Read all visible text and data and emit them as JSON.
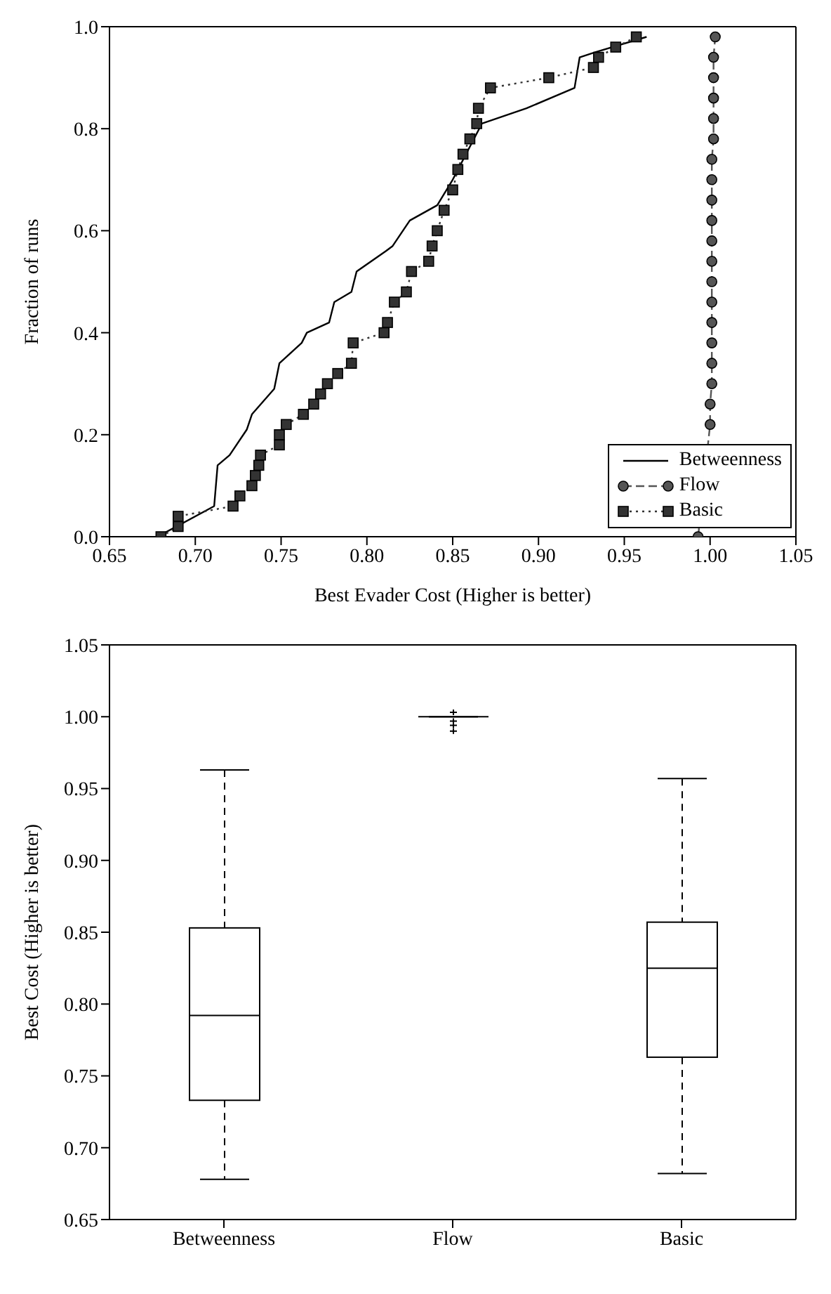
{
  "chart_data": [
    {
      "type": "line",
      "xlabel": "Best Evader Cost (Higher is better)",
      "ylabel": "Fraction of runs",
      "xlim": [
        0.65,
        1.05
      ],
      "ylim": [
        0,
        1
      ],
      "xticks": [
        {
          "value": 0.65,
          "label": "0.65"
        },
        {
          "value": 0.7,
          "label": "0.70"
        },
        {
          "value": 0.75,
          "label": "0.75"
        },
        {
          "value": 0.8,
          "label": "0.80"
        },
        {
          "value": 0.85,
          "label": "0.85"
        },
        {
          "value": 0.9,
          "label": "0.90"
        },
        {
          "value": 0.95,
          "label": "0.95"
        },
        {
          "value": 1,
          "label": "1.00"
        },
        {
          "value": 1.05,
          "label": "1.05"
        }
      ],
      "yticks": [
        {
          "value": 0,
          "label": "0.0"
        },
        {
          "value": 0.2,
          "label": "0.2"
        },
        {
          "value": 0.4,
          "label": "0.4"
        },
        {
          "value": 0.6,
          "label": "0.6"
        },
        {
          "value": 0.8,
          "label": "0.8"
        },
        {
          "value": 1,
          "label": "1.0"
        }
      ],
      "legend": "bottom right",
      "series": [
        {
          "name": "Betweenness",
          "color": "#000000",
          "marker": "none",
          "line_style": "solid",
          "x": [
            0.678,
            0.711,
            0.713,
            0.72,
            0.73,
            0.733,
            0.746,
            0.749,
            0.762,
            0.765,
            0.778,
            0.781,
            0.791,
            0.794,
            0.811,
            0.815,
            0.825,
            0.841,
            0.85,
            0.867,
            0.893,
            0.921,
            0.924,
            0.933,
            0.963
          ],
          "values": [
            0,
            0.06,
            0.14,
            0.16,
            0.21,
            0.24,
            0.29,
            0.34,
            0.38,
            0.4,
            0.42,
            0.46,
            0.48,
            0.52,
            0.56,
            0.57,
            0.62,
            0.65,
            0.7,
            0.81,
            0.84,
            0.88,
            0.94,
            0.95,
            0.98
          ]
        },
        {
          "name": "Flow",
          "color": "#555555",
          "marker": "circle",
          "line_style": "dashed",
          "x": [
            0.993,
            1,
            1,
            1.001,
            1.001,
            1.001,
            1.001,
            1.001,
            1.001,
            1.001,
            1.001,
            1.001,
            1.001,
            1.001,
            1.001,
            1.002,
            1.002,
            1.002,
            1.002,
            1.002,
            1.003
          ],
          "values": [
            0,
            0.22,
            0.26,
            0.3,
            0.34,
            0.38,
            0.42,
            0.46,
            0.5,
            0.54,
            0.58,
            0.62,
            0.66,
            0.7,
            0.74,
            0.78,
            0.82,
            0.86,
            0.9,
            0.94,
            0.98
          ]
        },
        {
          "name": "Basic",
          "color": "#333333",
          "marker": "square",
          "line_style": "dotted",
          "x": [
            0.68,
            0.69,
            0.69,
            0.722,
            0.726,
            0.733,
            0.735,
            0.737,
            0.738,
            0.749,
            0.749,
            0.753,
            0.763,
            0.769,
            0.773,
            0.777,
            0.783,
            0.791,
            0.792,
            0.81,
            0.812,
            0.816,
            0.823,
            0.826,
            0.836,
            0.838,
            0.841,
            0.845,
            0.85,
            0.853,
            0.856,
            0.86,
            0.864,
            0.865,
            0.872,
            0.906,
            0.932,
            0.935,
            0.945,
            0.957
          ],
          "values": [
            0,
            0.02,
            0.04,
            0.06,
            0.08,
            0.1,
            0.12,
            0.14,
            0.16,
            0.18,
            0.2,
            0.22,
            0.24,
            0.26,
            0.28,
            0.3,
            0.32,
            0.34,
            0.38,
            0.4,
            0.42,
            0.46,
            0.48,
            0.52,
            0.54,
            0.57,
            0.6,
            0.64,
            0.68,
            0.72,
            0.75,
            0.78,
            0.81,
            0.84,
            0.88,
            0.9,
            0.92,
            0.94,
            0.96,
            0.98
          ]
        }
      ]
    },
    {
      "type": "box",
      "ylabel": "Best Cost (Higher is better)",
      "categories": [
        "Betweenness",
        "Flow",
        "Basic"
      ],
      "ylim": [
        0.65,
        1.05
      ],
      "yticks": [
        {
          "value": 0.65,
          "label": "0.65"
        },
        {
          "value": 0.7,
          "label": "0.70"
        },
        {
          "value": 0.75,
          "label": "0.75"
        },
        {
          "value": 0.8,
          "label": "0.80"
        },
        {
          "value": 0.85,
          "label": "0.85"
        },
        {
          "value": 0.9,
          "label": "0.90"
        },
        {
          "value": 0.95,
          "label": "0.95"
        },
        {
          "value": 1,
          "label": "1.00"
        },
        {
          "value": 1.05,
          "label": "1.05"
        }
      ],
      "boxes": [
        {
          "low": 0.678,
          "q1": 0.733,
          "median": 0.792,
          "q3": 0.853,
          "high": 0.963
        },
        {
          "low": 1,
          "q1": 1,
          "median": 1,
          "q3": 1,
          "high": 1,
          "outliers": [
            1.003,
            0.997,
            0.994,
            0.99
          ]
        },
        {
          "low": 0.682,
          "q1": 0.763,
          "median": 0.825,
          "q3": 0.857,
          "high": 0.957
        }
      ]
    }
  ]
}
